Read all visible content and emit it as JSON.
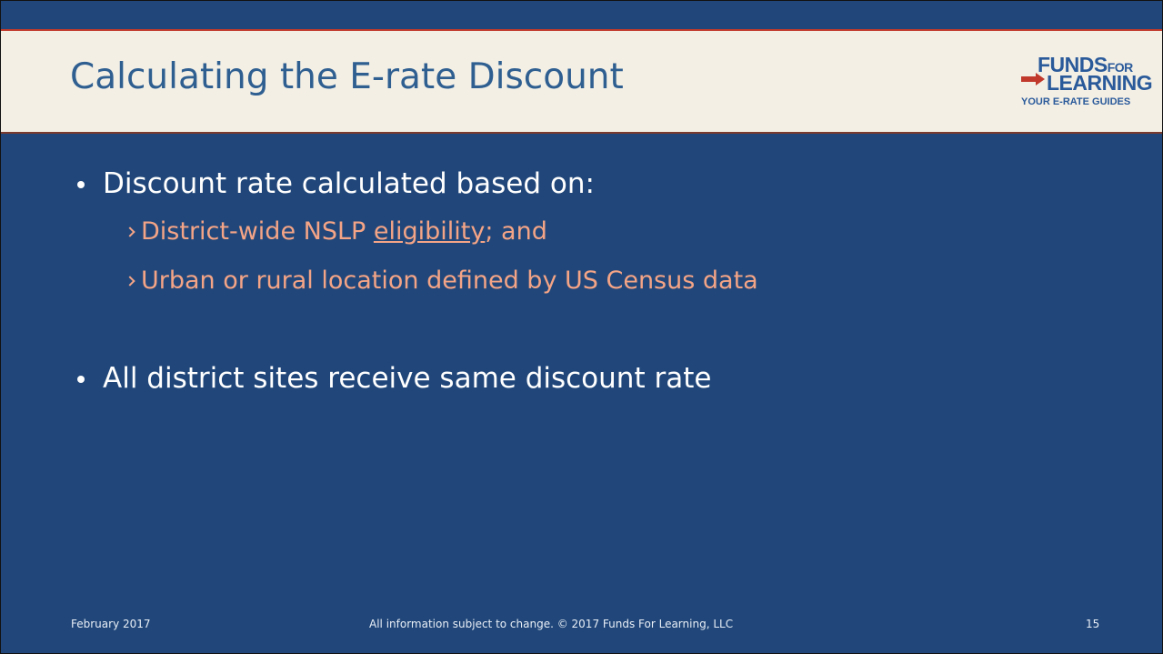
{
  "header": {
    "title": "Calculating the E-rate Discount",
    "logo": {
      "brand": "FUNDS",
      "brand_small": "FOR",
      "brand_line2": "LEARNING",
      "tagline": "YOUR E-RATE GUIDES"
    }
  },
  "body": {
    "bullets": [
      {
        "text": "Discount rate calculated based on:",
        "sub": [
          {
            "parts": [
              "District-wide NSLP ",
              "eligibility",
              "; and"
            ]
          },
          {
            "parts": [
              "Urban or rural location defined by US Census data"
            ]
          }
        ]
      },
      {
        "text": "All district sites receive same discount rate",
        "sub": []
      }
    ]
  },
  "footer": {
    "date": "February 2017",
    "notice": "All information subject to change. © 2017 Funds For Learning, LLC",
    "page": "15"
  }
}
